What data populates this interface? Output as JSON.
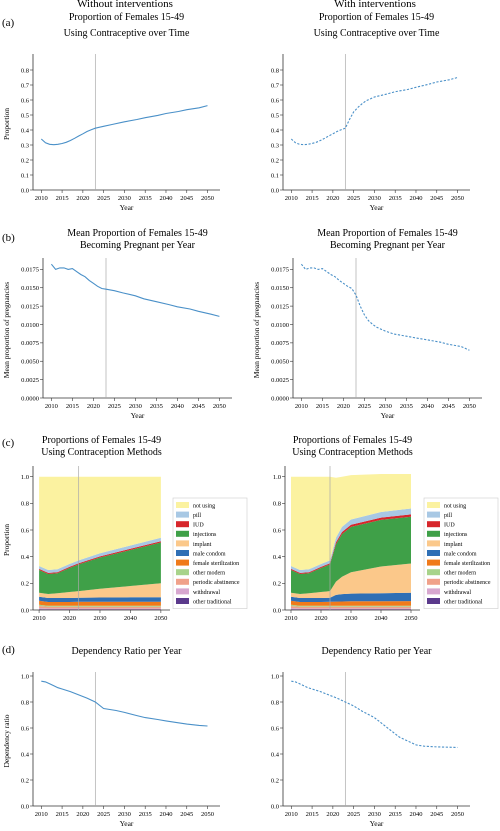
{
  "columns": {
    "left": "Without interventions",
    "right": "With interventions"
  },
  "panels": [
    "(a)",
    "(b)",
    "(c)",
    "(d)"
  ],
  "colors": {
    "line": "#4a90c8",
    "vline": "#aaaaaa",
    "axis": "#333333"
  },
  "chart_data": [
    {
      "id": "a_left",
      "type": "line",
      "line_style": "solid",
      "title": "Proportion of Females 15-49\nUsing Contraceptive over Time",
      "xlabel": "Year",
      "ylabel": "Proportion",
      "xlim": [
        2008,
        2053
      ],
      "ylim": [
        0,
        0.88
      ],
      "xticks": [
        2010,
        2015,
        2020,
        2025,
        2030,
        2035,
        2040,
        2045,
        2050
      ],
      "yticks": [
        0.0,
        0.1,
        0.2,
        0.3,
        0.4,
        0.5,
        0.6,
        0.7,
        0.8
      ],
      "vline": 2023,
      "series": [
        {
          "x": [
            2010,
            2011,
            2012,
            2013,
            2014,
            2015,
            2016,
            2017,
            2018,
            2019,
            2020,
            2021,
            2022,
            2023,
            2025,
            2027,
            2030,
            2033,
            2035,
            2038,
            2040,
            2043,
            2045,
            2048,
            2050
          ],
          "y": [
            0.34,
            0.315,
            0.305,
            0.302,
            0.305,
            0.31,
            0.318,
            0.33,
            0.345,
            0.36,
            0.375,
            0.39,
            0.402,
            0.412,
            0.425,
            0.437,
            0.455,
            0.47,
            0.482,
            0.497,
            0.51,
            0.523,
            0.535,
            0.548,
            0.563
          ]
        }
      ]
    },
    {
      "id": "a_right",
      "type": "line",
      "line_style": "dashed",
      "title": "Proportion of Females 15-49\nUsing Contraceptive over Time",
      "xlabel": "Year",
      "ylabel": "",
      "xlim": [
        2008,
        2053
      ],
      "ylim": [
        0,
        0.88
      ],
      "xticks": [
        2010,
        2015,
        2020,
        2025,
        2030,
        2035,
        2040,
        2045,
        2050
      ],
      "yticks": [
        0.0,
        0.1,
        0.2,
        0.3,
        0.4,
        0.5,
        0.6,
        0.7,
        0.8
      ],
      "vline": 2023,
      "series": [
        {
          "x": [
            2010,
            2011,
            2012,
            2013,
            2014,
            2015,
            2016,
            2017,
            2018,
            2019,
            2020,
            2021,
            2022,
            2023,
            2024,
            2025,
            2026,
            2027,
            2028,
            2030,
            2033,
            2035,
            2038,
            2040,
            2043,
            2045,
            2048,
            2050
          ],
          "y": [
            0.34,
            0.315,
            0.305,
            0.302,
            0.305,
            0.31,
            0.318,
            0.33,
            0.345,
            0.36,
            0.375,
            0.39,
            0.402,
            0.412,
            0.47,
            0.52,
            0.55,
            0.575,
            0.595,
            0.62,
            0.64,
            0.655,
            0.67,
            0.685,
            0.705,
            0.72,
            0.735,
            0.75
          ]
        }
      ]
    },
    {
      "id": "b_left",
      "type": "line",
      "line_style": "solid",
      "title": "Mean Proportion of Females 15-49\nBecoming Pregnant per Year",
      "xlabel": "Year",
      "ylabel": "Mean proportion of pregnancies",
      "xlim": [
        2008,
        2053
      ],
      "ylim": [
        0,
        0.0185
      ],
      "xticks": [
        2010,
        2015,
        2020,
        2025,
        2030,
        2035,
        2040,
        2045,
        2050
      ],
      "yticks": [
        0.0,
        0.0025,
        0.005,
        0.0075,
        0.01,
        0.0125,
        0.015,
        0.0175
      ],
      "ytick_labels": [
        "0.0000",
        "0.0025",
        "0.0050",
        "0.0075",
        "0.0100",
        "0.0125",
        "0.0150",
        "0.0175"
      ],
      "vline": 2023,
      "series": [
        {
          "x": [
            2010,
            2011,
            2012,
            2013,
            2014,
            2015,
            2016,
            2017,
            2018,
            2019,
            2020,
            2021,
            2022,
            2023,
            2025,
            2027,
            2030,
            2032,
            2035,
            2038,
            2040,
            2043,
            2045,
            2048,
            2050
          ],
          "y": [
            0.0182,
            0.0175,
            0.0177,
            0.0177,
            0.0175,
            0.0176,
            0.0172,
            0.0168,
            0.0165,
            0.016,
            0.0156,
            0.0152,
            0.0149,
            0.0148,
            0.0146,
            0.0143,
            0.0139,
            0.0135,
            0.0131,
            0.0127,
            0.0124,
            0.0121,
            0.0118,
            0.0114,
            0.0111
          ]
        }
      ]
    },
    {
      "id": "b_right",
      "type": "line",
      "line_style": "dashed",
      "title": "Mean Proportion of Females 15-49\nBecoming Pregnant per Year",
      "xlabel": "Year",
      "ylabel": "Mean proportion of pregnancies",
      "xlim": [
        2008,
        2053
      ],
      "ylim": [
        0,
        0.0185
      ],
      "xticks": [
        2010,
        2015,
        2020,
        2025,
        2030,
        2035,
        2040,
        2045,
        2050
      ],
      "yticks": [
        0.0,
        0.0025,
        0.005,
        0.0075,
        0.01,
        0.0125,
        0.015,
        0.0175
      ],
      "ytick_labels": [
        "0.0000",
        "0.0025",
        "0.0050",
        "0.0075",
        "0.0100",
        "0.0125",
        "0.0150",
        "0.0175"
      ],
      "vline": 2023,
      "series": [
        {
          "x": [
            2010,
            2011,
            2012,
            2013,
            2014,
            2015,
            2016,
            2017,
            2018,
            2019,
            2020,
            2021,
            2022,
            2023,
            2024,
            2025,
            2026,
            2027,
            2028,
            2030,
            2032,
            2035,
            2038,
            2040,
            2043,
            2045,
            2048,
            2050
          ],
          "y": [
            0.0182,
            0.0175,
            0.0177,
            0.0177,
            0.0175,
            0.0176,
            0.0172,
            0.0168,
            0.0165,
            0.016,
            0.0156,
            0.0152,
            0.0149,
            0.014,
            0.0125,
            0.0113,
            0.0105,
            0.01,
            0.0096,
            0.0091,
            0.0087,
            0.0084,
            0.0081,
            0.0079,
            0.0076,
            0.0073,
            0.007,
            0.0065
          ]
        }
      ]
    },
    {
      "id": "c_left",
      "type": "area",
      "stacked": true,
      "title": "Proportions of Females 15-49\nUsing Contraception Methods",
      "xlabel": "",
      "ylabel": "Proportion",
      "xlim": [
        2008,
        2053
      ],
      "ylim": [
        0,
        1.05
      ],
      "xticks": [
        2010,
        2020,
        2030,
        2040,
        2050
      ],
      "yticks": [
        0.0,
        0.2,
        0.4,
        0.6,
        0.8,
        1.0
      ],
      "vline": 2023,
      "x": [
        2010,
        2013,
        2016,
        2020,
        2023,
        2030,
        2040,
        2050
      ],
      "series": [
        {
          "name": "other traditional",
          "color": "#5b3a8c",
          "values": [
            0.005,
            0.004,
            0.004,
            0.004,
            0.004,
            0.004,
            0.004,
            0.004
          ]
        },
        {
          "name": "withdrawal",
          "color": "#d7a7cf",
          "values": [
            0.01,
            0.008,
            0.008,
            0.008,
            0.008,
            0.008,
            0.008,
            0.008
          ]
        },
        {
          "name": "periodic abstinence",
          "color": "#f0a18a",
          "values": [
            0.015,
            0.012,
            0.012,
            0.012,
            0.012,
            0.012,
            0.012,
            0.012
          ]
        },
        {
          "name": "other modern",
          "color": "#a8d38a",
          "values": [
            0.01,
            0.008,
            0.008,
            0.008,
            0.008,
            0.008,
            0.008,
            0.008
          ]
        },
        {
          "name": "female sterilization",
          "color": "#f07a1a",
          "values": [
            0.03,
            0.028,
            0.028,
            0.028,
            0.03,
            0.03,
            0.03,
            0.03
          ]
        },
        {
          "name": "male condom",
          "color": "#2f6fb5",
          "values": [
            0.03,
            0.03,
            0.03,
            0.03,
            0.03,
            0.032,
            0.033,
            0.034
          ]
        },
        {
          "name": "implant",
          "color": "#fbc88a",
          "values": [
            0.03,
            0.03,
            0.035,
            0.045,
            0.05,
            0.065,
            0.085,
            0.105
          ]
        },
        {
          "name": "injections",
          "color": "#3fa048",
          "values": [
            0.17,
            0.15,
            0.15,
            0.18,
            0.2,
            0.235,
            0.27,
            0.305
          ]
        },
        {
          "name": "IUD",
          "color": "#d7262b",
          "values": [
            0.008,
            0.008,
            0.008,
            0.008,
            0.008,
            0.008,
            0.009,
            0.01
          ]
        },
        {
          "name": "pill",
          "color": "#a8c8e4",
          "values": [
            0.022,
            0.022,
            0.022,
            0.022,
            0.022,
            0.024,
            0.025,
            0.026
          ]
        },
        {
          "name": "not using",
          "color": "#fbf2a0",
          "values": [
            0.67,
            0.7,
            0.695,
            0.654,
            0.628,
            0.574,
            0.516,
            0.458
          ]
        }
      ],
      "legend": [
        "not using",
        "pill",
        "IUD",
        "injections",
        "implant",
        "male condom",
        "female sterilization",
        "other modern",
        "periodic abstinence",
        "withdrawal",
        "other traditional"
      ],
      "legend_placement": "right"
    },
    {
      "id": "c_right",
      "type": "area",
      "stacked": true,
      "title": "Proportions of Females 15-49\nUsing Contraception Methods",
      "xlabel": "",
      "ylabel": "",
      "xlim": [
        2008,
        2053
      ],
      "ylim": [
        0,
        1.05
      ],
      "xticks": [
        2010,
        2020,
        2030,
        2040,
        2050
      ],
      "yticks": [
        0.0,
        0.2,
        0.4,
        0.6,
        0.8,
        1.0
      ],
      "vline": 2023,
      "x": [
        2010,
        2013,
        2016,
        2020,
        2023,
        2025,
        2027,
        2030,
        2040,
        2050
      ],
      "series": [
        {
          "name": "other traditional",
          "color": "#5b3a8c",
          "values": [
            0.005,
            0.004,
            0.004,
            0.004,
            0.004,
            0.004,
            0.004,
            0.004,
            0.004,
            0.004
          ]
        },
        {
          "name": "withdrawal",
          "color": "#d7a7cf",
          "values": [
            0.01,
            0.008,
            0.008,
            0.008,
            0.008,
            0.008,
            0.008,
            0.008,
            0.008,
            0.008
          ]
        },
        {
          "name": "periodic abstinence",
          "color": "#f0a18a",
          "values": [
            0.015,
            0.012,
            0.012,
            0.012,
            0.012,
            0.012,
            0.012,
            0.012,
            0.012,
            0.012
          ]
        },
        {
          "name": "other modern",
          "color": "#a8d38a",
          "values": [
            0.01,
            0.008,
            0.008,
            0.008,
            0.008,
            0.008,
            0.008,
            0.008,
            0.008,
            0.008
          ]
        },
        {
          "name": "female sterilization",
          "color": "#f07a1a",
          "values": [
            0.03,
            0.028,
            0.028,
            0.028,
            0.03,
            0.031,
            0.032,
            0.033,
            0.034,
            0.035
          ]
        },
        {
          "name": "male condom",
          "color": "#2f6fb5",
          "values": [
            0.03,
            0.03,
            0.03,
            0.03,
            0.03,
            0.05,
            0.055,
            0.058,
            0.06,
            0.062
          ]
        },
        {
          "name": "implant",
          "color": "#fbc88a",
          "values": [
            0.03,
            0.03,
            0.035,
            0.045,
            0.05,
            0.1,
            0.13,
            0.16,
            0.2,
            0.22
          ]
        },
        {
          "name": "injections",
          "color": "#3fa048",
          "values": [
            0.17,
            0.15,
            0.15,
            0.18,
            0.2,
            0.28,
            0.32,
            0.34,
            0.35,
            0.35
          ]
        },
        {
          "name": "IUD",
          "color": "#d7262b",
          "values": [
            0.008,
            0.008,
            0.008,
            0.008,
            0.008,
            0.015,
            0.016,
            0.016,
            0.017,
            0.018
          ]
        },
        {
          "name": "pill",
          "color": "#a8c8e4",
          "values": [
            0.022,
            0.022,
            0.022,
            0.022,
            0.022,
            0.035,
            0.038,
            0.04,
            0.042,
            0.044
          ]
        },
        {
          "name": "not using",
          "color": "#fbf2a0",
          "values": [
            0.67,
            0.7,
            0.695,
            0.654,
            0.628,
            0.449,
            0.377,
            0.333,
            0.285,
            0.259
          ]
        }
      ],
      "legend": [
        "not using",
        "pill",
        "IUD",
        "injections",
        "implant",
        "male condom",
        "female sterilization",
        "other modern",
        "periodic abstinence",
        "withdrawal",
        "other traditional"
      ],
      "legend_placement": "right"
    },
    {
      "id": "d_left",
      "type": "line",
      "line_style": "solid",
      "title": "Dependency Ratio per Year",
      "xlabel": "Year",
      "ylabel": "Dependency ratio",
      "xlim": [
        2008,
        2053
      ],
      "ylim": [
        0,
        1.0
      ],
      "xticks": [
        2010,
        2015,
        2020,
        2025,
        2030,
        2035,
        2040,
        2045,
        2050
      ],
      "yticks": [
        0.0,
        0.2,
        0.4,
        0.6,
        0.8,
        1.0
      ],
      "vline": 2023,
      "series": [
        {
          "x": [
            2010,
            2011,
            2012,
            2013,
            2014,
            2015,
            2017,
            2019,
            2021,
            2023,
            2025,
            2028,
            2030,
            2033,
            2035,
            2038,
            2040,
            2043,
            2045,
            2048,
            2050
          ],
          "y": [
            0.96,
            0.955,
            0.94,
            0.925,
            0.91,
            0.9,
            0.88,
            0.855,
            0.83,
            0.8,
            0.75,
            0.735,
            0.72,
            0.695,
            0.68,
            0.665,
            0.655,
            0.64,
            0.63,
            0.62,
            0.615
          ]
        }
      ]
    },
    {
      "id": "d_right",
      "type": "line",
      "line_style": "dashed",
      "title": "Dependency Ratio per Year",
      "xlabel": "Year",
      "ylabel": "",
      "xlim": [
        2008,
        2053
      ],
      "ylim": [
        0,
        1.0
      ],
      "xticks": [
        2010,
        2015,
        2020,
        2025,
        2030,
        2035,
        2040,
        2045,
        2050
      ],
      "yticks": [
        0.0,
        0.2,
        0.4,
        0.6,
        0.8,
        1.0
      ],
      "vline": 2023,
      "series": [
        {
          "x": [
            2010,
            2011,
            2012,
            2013,
            2014,
            2015,
            2017,
            2019,
            2021,
            2023,
            2025,
            2027,
            2030,
            2032,
            2034,
            2036,
            2038,
            2040,
            2042,
            2045,
            2048,
            2050
          ],
          "y": [
            0.96,
            0.955,
            0.94,
            0.925,
            0.91,
            0.9,
            0.88,
            0.855,
            0.83,
            0.8,
            0.77,
            0.73,
            0.68,
            0.63,
            0.58,
            0.53,
            0.5,
            0.47,
            0.46,
            0.455,
            0.452,
            0.45
          ]
        }
      ]
    }
  ]
}
